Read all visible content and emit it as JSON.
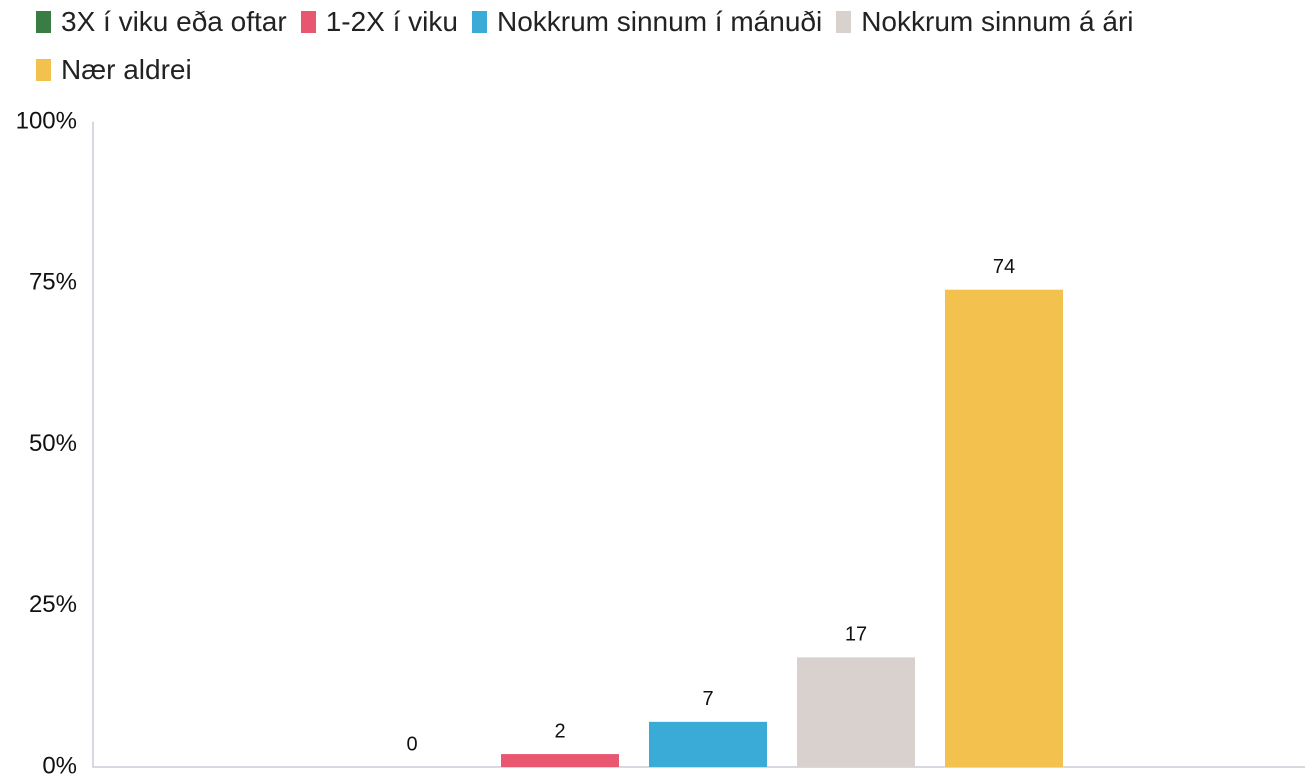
{
  "chart_data": {
    "type": "bar",
    "series": [
      {
        "name": "3X í viku eða oftar",
        "color": "#3a7d44",
        "values": [
          0
        ]
      },
      {
        "name": "1-2X í viku",
        "color": "#e8566f",
        "values": [
          2
        ]
      },
      {
        "name": "Nokkrum sinnum í mánuði",
        "color": "#3aabd6",
        "values": [
          7
        ]
      },
      {
        "name": "Nokkrum sinnum á ári",
        "color": "#d9d1ce",
        "values": [
          17
        ]
      },
      {
        "name": "Nær aldrei",
        "color": "#f2c14e",
        "values": [
          74
        ]
      }
    ],
    "ylim": [
      0,
      100
    ],
    "yticks": [
      {
        "value": 0,
        "label": "0%"
      },
      {
        "value": 25,
        "label": "25%"
      },
      {
        "value": 50,
        "label": "50%"
      },
      {
        "value": 75,
        "label": "75%"
      },
      {
        "value": 100,
        "label": "100%"
      }
    ],
    "grid": false,
    "legend": "top"
  }
}
